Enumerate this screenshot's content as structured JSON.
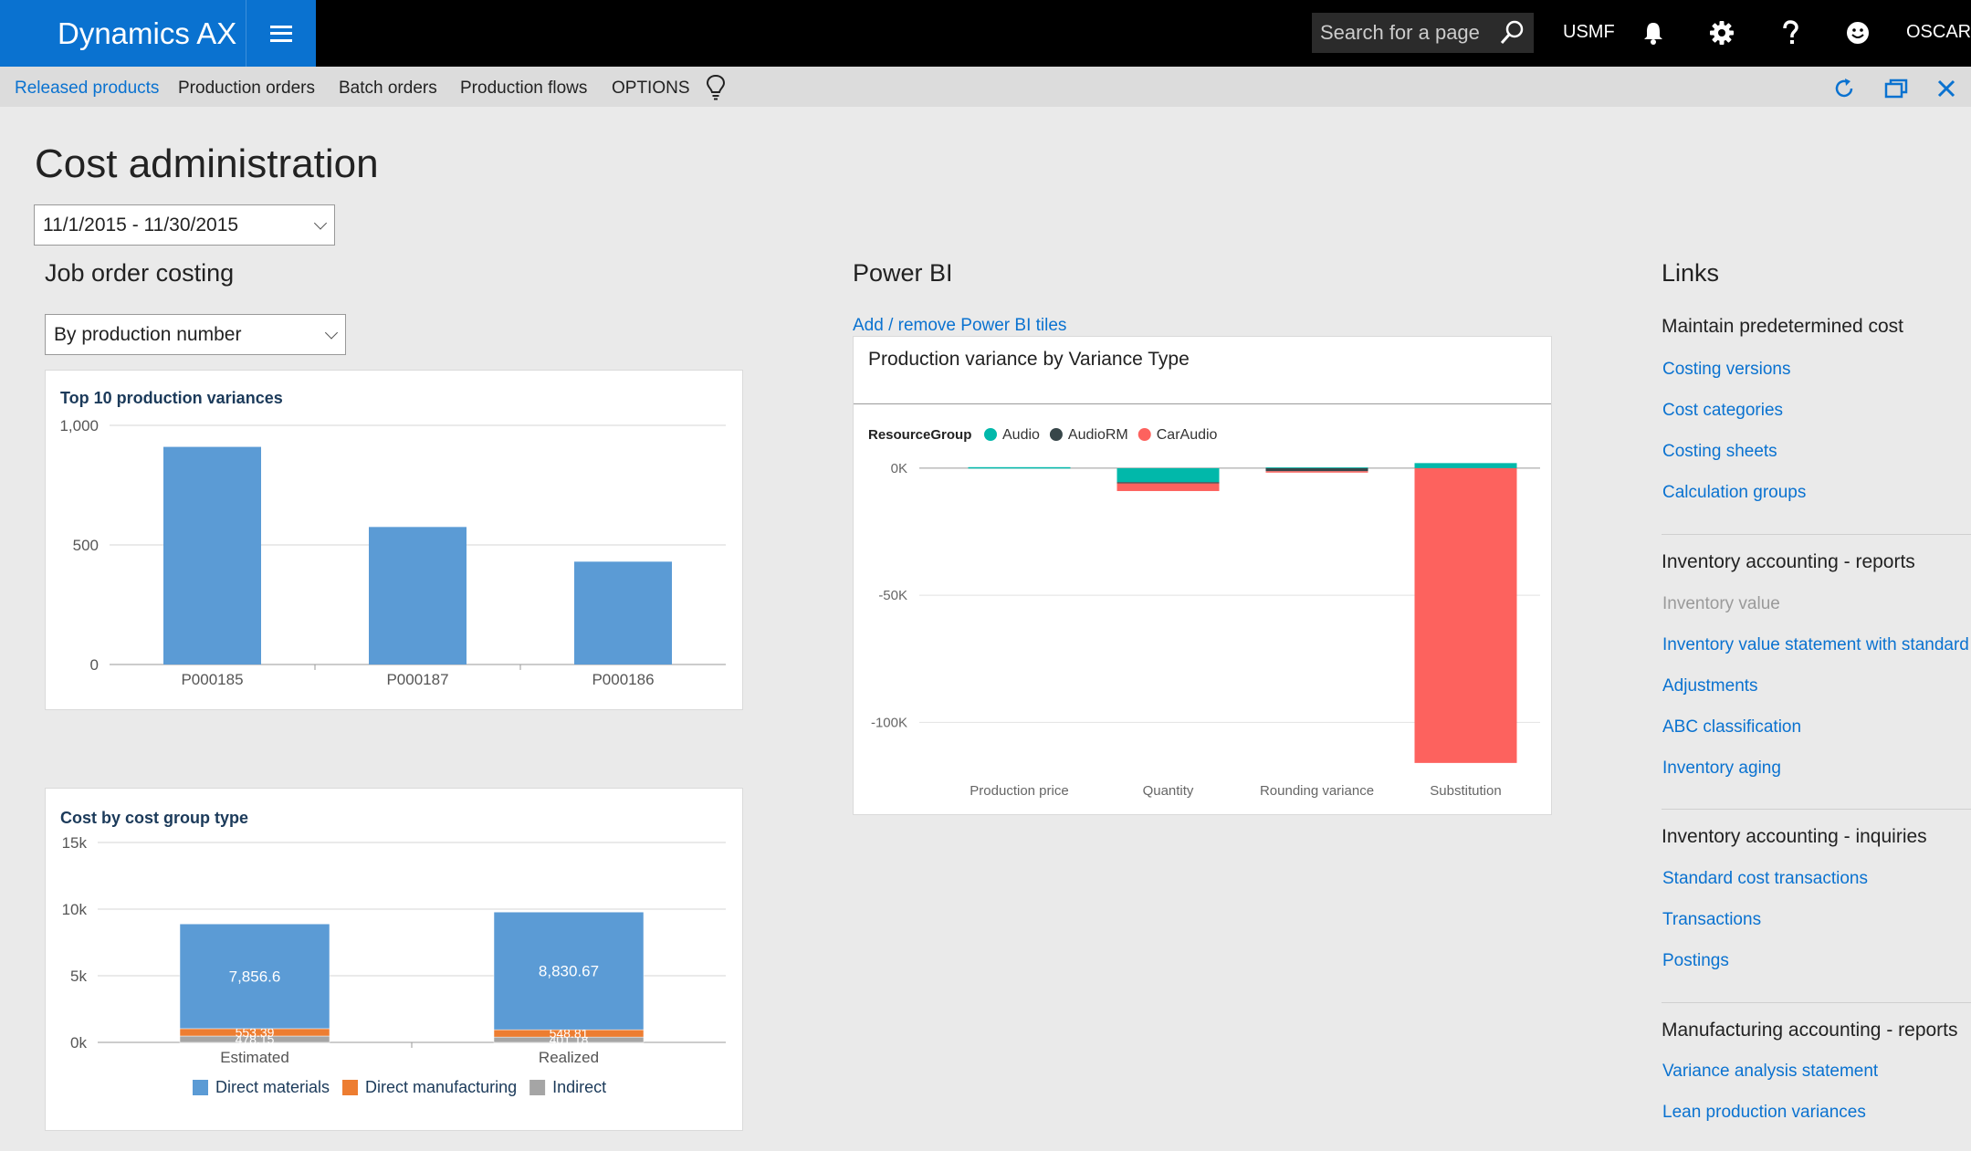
{
  "app": {
    "brand": "Dynamics AX",
    "search_placeholder": "Search for a page",
    "company": "USMF",
    "user": "OSCAR"
  },
  "nav": {
    "items": [
      "Released products",
      "Production orders",
      "Batch orders",
      "Production flows",
      "OPTIONS"
    ]
  },
  "page": {
    "title": "Cost administration",
    "date_range": "11/1/2015 - 11/30/2015"
  },
  "job_costing": {
    "title": "Job order costing",
    "filter": "By production number"
  },
  "powerbi": {
    "title": "Power BI",
    "add_remove_link": "Add / remove Power BI tiles",
    "tile_title": "Production variance by Variance Type"
  },
  "links": {
    "title": "Links",
    "groups": [
      {
        "title": "Maintain predetermined cost",
        "items": [
          {
            "label": "Costing versions",
            "enabled": true
          },
          {
            "label": "Cost categories",
            "enabled": true
          },
          {
            "label": "Costing sheets",
            "enabled": true
          },
          {
            "label": "Calculation groups",
            "enabled": true
          }
        ]
      },
      {
        "title": "Inventory accounting - reports",
        "items": [
          {
            "label": "Inventory value",
            "enabled": false
          },
          {
            "label": "Inventory value statement with standard co",
            "enabled": true
          },
          {
            "label": "Adjustments",
            "enabled": true
          },
          {
            "label": "ABC classification",
            "enabled": true
          },
          {
            "label": "Inventory aging",
            "enabled": true
          }
        ]
      },
      {
        "title": "Inventory accounting - inquiries",
        "items": [
          {
            "label": "Standard cost transactions",
            "enabled": true
          },
          {
            "label": "Transactions",
            "enabled": true
          },
          {
            "label": "Postings",
            "enabled": true
          }
        ]
      },
      {
        "title": "Manufacturing accounting - reports",
        "items": [
          {
            "label": "Variance analysis statement",
            "enabled": true
          },
          {
            "label": "Lean production variances",
            "enabled": true
          }
        ]
      }
    ]
  },
  "icons": {
    "search": "search-icon",
    "notifications": "bell-icon",
    "settings": "gear-icon",
    "help": "help-icon",
    "feedback": "smiley-icon",
    "lightbulb": "lightbulb-icon",
    "refresh": "refresh-icon",
    "popout": "popout-icon",
    "close": "close-icon"
  },
  "colors": {
    "accent": "#0a72d0",
    "bar_blue": "#5b9bd5",
    "orange": "#ed7d31",
    "gray": "#a5a5a5",
    "teal": "#01b8aa",
    "dark": "#374649",
    "red": "#fd625e"
  },
  "chart_data": [
    {
      "type": "bar",
      "title": "Top 10 production variances",
      "categories": [
        "P000185",
        "P000187",
        "P000186"
      ],
      "values": [
        910,
        575,
        430
      ],
      "ylim": [
        0,
        1000
      ],
      "yticks": [
        0,
        500,
        1000
      ],
      "ytick_labels": [
        "0",
        "500",
        "1,000"
      ],
      "grid": true
    },
    {
      "type": "bar",
      "stacked": true,
      "title": "Cost by cost group type",
      "categories": [
        "Estimated",
        "Realized"
      ],
      "series": [
        {
          "name": "Direct materials",
          "values": [
            7856.6,
            8830.67
          ],
          "labels": [
            "7,856.6",
            "8,830.67"
          ]
        },
        {
          "name": "Direct manufacturing",
          "values": [
            553.39,
            548.81
          ],
          "labels": [
            "553.39",
            "548.81"
          ]
        },
        {
          "name": "Indirect",
          "values": [
            478.15,
            401.18
          ],
          "labels": [
            "478.15",
            "401.18"
          ]
        }
      ],
      "ylim": [
        0,
        15000
      ],
      "yticks": [
        0,
        5000,
        10000,
        15000
      ],
      "ytick_labels": [
        "0k",
        "5k",
        "10k",
        "15k"
      ],
      "legend": "bottom",
      "grid": true
    },
    {
      "type": "bar",
      "stacked": true,
      "title": "Production variance by Variance Type",
      "legend_title": "ResourceGroup",
      "categories": [
        "Production price",
        "Quantity",
        "Rounding variance",
        "Substitution"
      ],
      "series": [
        {
          "name": "Audio",
          "values": [
            400,
            -5500,
            300,
            2000
          ]
        },
        {
          "name": "AudioRM",
          "values": [
            0,
            -500,
            -1200,
            0
          ]
        },
        {
          "name": "CarAudio",
          "values": [
            0,
            -3000,
            -300,
            -116000
          ]
        }
      ],
      "ylim": [
        -120000,
        5000
      ],
      "yticks": [
        0,
        -50000,
        -100000
      ],
      "ytick_labels": [
        "0K",
        "-50K",
        "-100K"
      ],
      "legend": "top-left",
      "grid": true
    }
  ]
}
